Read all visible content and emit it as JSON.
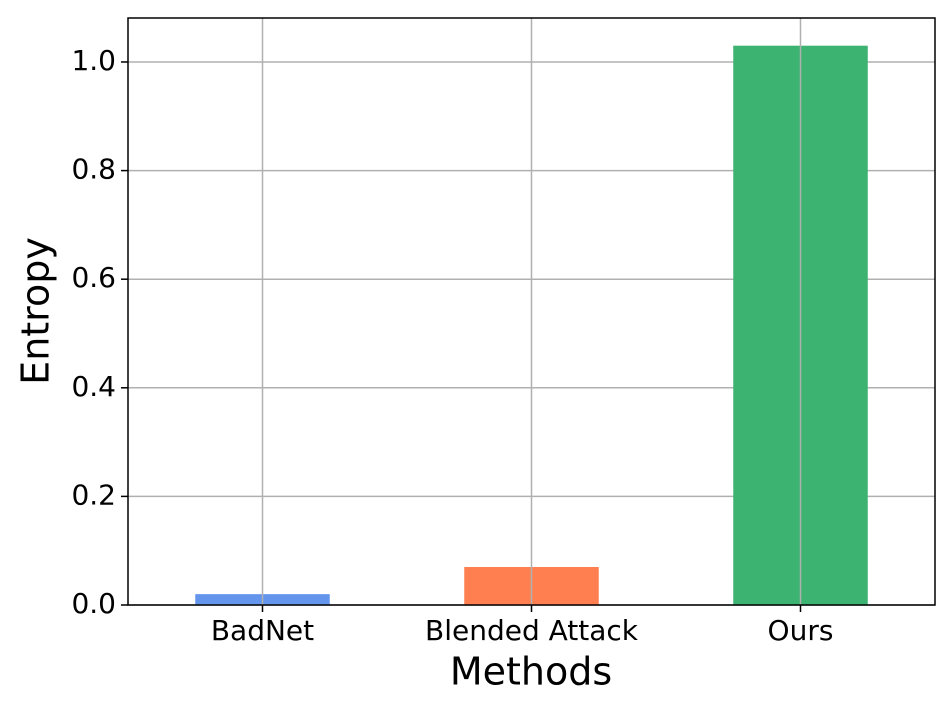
{
  "chart_data": {
    "type": "bar",
    "x_label": "Methods",
    "y_label": "Entropy",
    "categories": [
      "BadNet",
      "Blended Attack",
      "Ours"
    ],
    "values": [
      0.02,
      0.07,
      1.03
    ],
    "colors": [
      "#6495ed",
      "#ff7f50",
      "#3cb371"
    ],
    "ylim": [
      0,
      1.081
    ],
    "yticks": [
      {
        "value": 0,
        "label": "0.0"
      },
      0.2,
      0.4,
      0.6,
      0.8,
      {
        "value": 1,
        "label": "1.0"
      }
    ],
    "grid": true
  }
}
